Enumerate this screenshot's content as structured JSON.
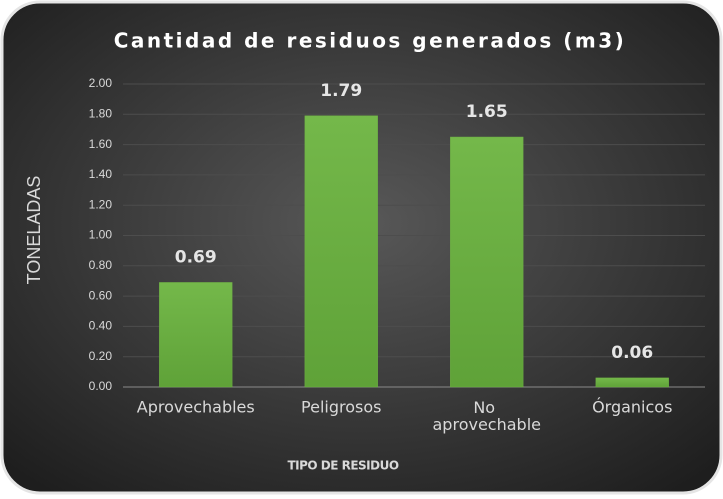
{
  "chart_data": {
    "type": "bar",
    "title": "Cantidad de residuos generados (m3)",
    "categories": [
      "Aprovechables",
      "Peligrosos",
      "No aprovechable",
      "Órganicos"
    ],
    "values": [
      0.69,
      1.79,
      1.65,
      0.06
    ],
    "color": "#6fb244",
    "xlabel": "TIPO DE RESIDUO",
    "ylabel": "TONELADAS",
    "ylim": [
      0,
      2
    ],
    "yticks": [
      {
        "value": 0,
        "label": "0.00"
      },
      {
        "value": 0.2,
        "label": "0.20"
      },
      {
        "value": 0.4,
        "label": "0.40"
      },
      {
        "value": 0.6,
        "label": "0.60"
      },
      {
        "value": 0.8,
        "label": "0.80"
      },
      {
        "value": 1,
        "label": "1.00"
      },
      {
        "value": 1.2,
        "label": "1.20"
      },
      {
        "value": 1.4,
        "label": "1.40"
      },
      {
        "value": 1.6,
        "label": "1.60"
      },
      {
        "value": 1.8,
        "label": "1.80"
      },
      {
        "value": 2,
        "label": "2.00"
      }
    ],
    "grid": true
  }
}
